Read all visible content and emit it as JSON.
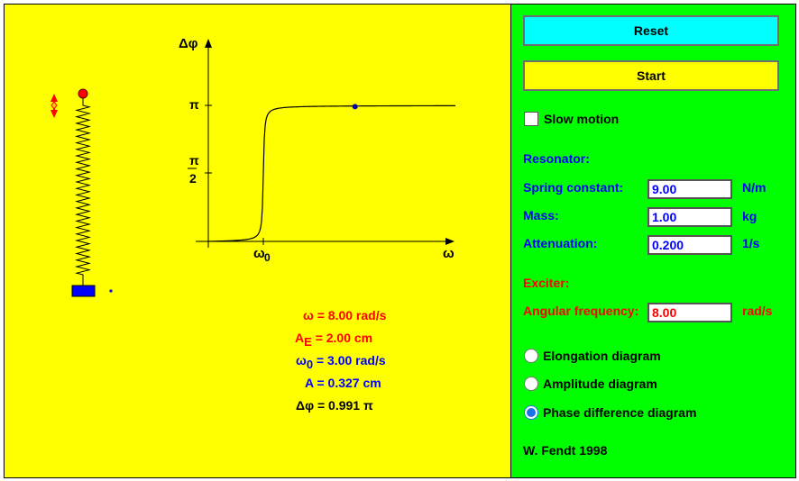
{
  "plot": {
    "y_axis_label": "Δφ",
    "x_axis_label": "ω",
    "tick_pi": "π",
    "tick_half_num": "π",
    "tick_half_den": "2",
    "tick_omega0": "ω",
    "tick_omega0_sub": "0"
  },
  "readout": {
    "omega": {
      "sym": "ω",
      "sub": "",
      "text": "= 8.00 rad/s",
      "color": "#ff0000"
    },
    "ae": {
      "sym": "A",
      "sub": "E",
      "text": "= 2.00 cm",
      "color": "#ff0000"
    },
    "omega0": {
      "sym": "ω",
      "sub": "0",
      "text": "= 3.00 rad/s",
      "color": "#0000ff"
    },
    "a": {
      "sym": "A",
      "sub": "",
      "text": "= 0.327 cm",
      "color": "#0000ff"
    },
    "dphi": {
      "sym": "Δφ",
      "sub": "",
      "text": "= 0.991 π",
      "color": "#000000"
    }
  },
  "panel": {
    "reset_label": "Reset",
    "start_label": "Start",
    "slow_motion_label": "Slow motion",
    "slow_motion_checked": false,
    "resonator_heading": "Resonator:",
    "spring_label": "Spring constant:",
    "spring_value": "9.00",
    "spring_unit": "N/m",
    "mass_label": "Mass:",
    "mass_value": "1.00",
    "mass_unit": "kg",
    "attenuation_label": "Attenuation:",
    "attenuation_value": "0.200",
    "attenuation_unit": "1/s",
    "exciter_heading": "Exciter:",
    "angular_label": "Angular frequency:",
    "angular_value": "8.00",
    "angular_unit": "rad/s",
    "radio_elongation": "Elongation diagram",
    "radio_amplitude": "Amplitude diagram",
    "radio_phase": "Phase difference diagram",
    "selected_diagram": "phase",
    "credit": "W. Fendt 1998"
  },
  "colors": {
    "canvas_bg": "#ffff00",
    "panel_bg": "#00ff00",
    "reset_bg": "#00ffff",
    "start_bg": "#ffff00",
    "resonator": "#0000ff",
    "exciter": "#ff0000"
  },
  "model": {
    "omega0": 3.0,
    "omega": 8.0,
    "phase_fraction_of_pi": 0.991,
    "damping_gamma": 0.2
  }
}
